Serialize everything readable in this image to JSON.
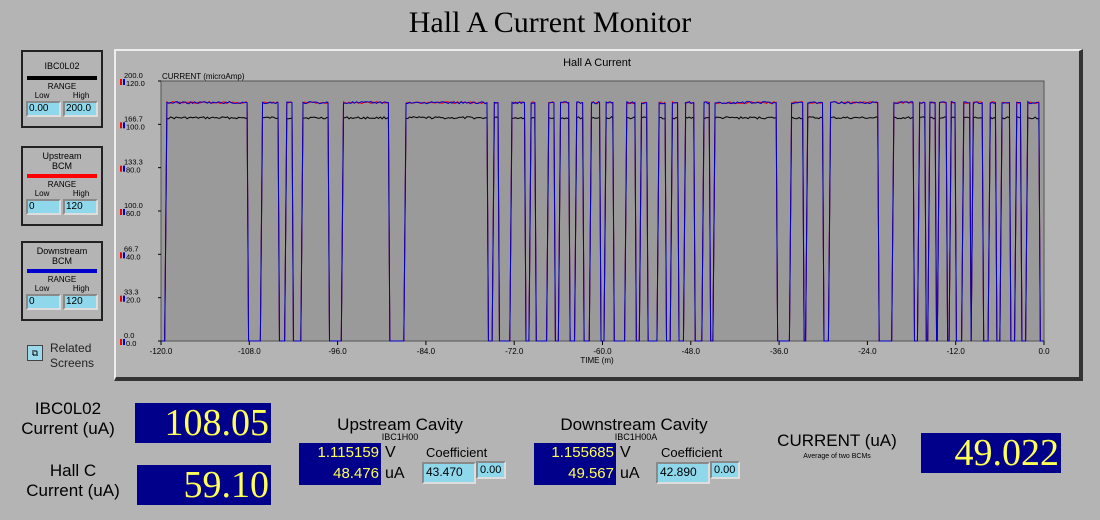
{
  "title": "Hall A Current Monitor",
  "range_boxes": [
    {
      "name": "IBC0L02",
      "color": "#000000",
      "range_label": "RANGE",
      "low_label": "Low",
      "high_label": "High",
      "low": "0.00",
      "high": "200.0"
    },
    {
      "name": "Upstream\nBCM",
      "color": "#ff0000",
      "range_label": "RANGE",
      "low_label": "Low",
      "high_label": "High",
      "low": "0",
      "high": "120"
    },
    {
      "name": "Downstream\nBCM",
      "color": "#0000cc",
      "range_label": "RANGE",
      "low_label": "Low",
      "high_label": "High",
      "low": "0",
      "high": "120"
    }
  ],
  "related": {
    "label": "Related\nScreens",
    "icon": "related-screens-icon"
  },
  "chart_data": {
    "type": "line",
    "title": "Hall A Current",
    "ylabel": "CURRENT (microAmp)",
    "xlabel": "TIME (m)",
    "xlim": [
      -120,
      0
    ],
    "x_ticks": [
      "-120.0",
      "-108.0",
      "-96.0",
      "-84.0",
      "-72.0",
      "-60.0",
      "-48.0",
      "-36.0",
      "-24.0",
      "-12.0",
      "0.0"
    ],
    "y_ticks_black": [
      "200.0",
      "166.7",
      "133.3",
      "100.0",
      "66.7",
      "33.3",
      "0.0"
    ],
    "y_ticks_red": [
      "120.0",
      "100.0",
      "80.0",
      "60.0",
      "40.0",
      "20.0",
      "0.0"
    ],
    "series": [
      {
        "name": "IBC0L02",
        "color": "#000000",
        "on_level": 103
      },
      {
        "name": "Upstream BCM",
        "color": "#ff0000",
        "on_level": 110
      },
      {
        "name": "Downstream BCM",
        "color": "#0000cc",
        "on_level": 110
      }
    ],
    "on_intervals": [
      [
        -119.5,
        -108.3
      ],
      [
        -106.5,
        -104.1
      ],
      [
        -103.2,
        -102.2
      ],
      [
        -101.0,
        -97.3
      ],
      [
        -95.5,
        -89.1
      ],
      [
        -87.0,
        -75.7
      ],
      [
        -75.0,
        -74.2
      ],
      [
        -72.6,
        -70.6
      ],
      [
        -70.0,
        -69.2
      ],
      [
        -67.6,
        -66.6
      ],
      [
        -66.0,
        -64.6
      ],
      [
        -63.8,
        -62.7
      ],
      [
        -61.8,
        -60.4
      ],
      [
        -59.8,
        -58.6
      ],
      [
        -57.0,
        -55.6
      ],
      [
        -55.0,
        -54.0
      ],
      [
        -52.6,
        -51.5
      ],
      [
        -50.8,
        -49.8
      ],
      [
        -49.0,
        -47.6
      ],
      [
        -46.5,
        -45.5
      ],
      [
        -45.0,
        -36.4
      ],
      [
        -34.6,
        -32.8
      ],
      [
        -32.4,
        -30.1
      ],
      [
        -29.3,
        -22.6
      ],
      [
        -20.7,
        -17.8
      ],
      [
        -17.2,
        -16.2
      ],
      [
        -15.8,
        -14.8
      ],
      [
        -14.5,
        -13.3
      ],
      [
        -12.9,
        -12.1
      ],
      [
        -11.2,
        -10.1
      ],
      [
        -9.9,
        -8.4
      ],
      [
        -7.6,
        -6.6
      ],
      [
        -6.0,
        -4.7
      ],
      [
        -4.0,
        -3.2
      ],
      [
        -2.5,
        -0.7
      ]
    ]
  },
  "ibc": {
    "label": "IBC0L02\nCurrent (uA)",
    "value": "108.05"
  },
  "hallc": {
    "label": "Hall C\nCurrent (uA)",
    "value": "59.10"
  },
  "upstream": {
    "title": "Upstream Cavity",
    "pv": "IBC1H00",
    "volts": "1.115159",
    "volts_unit": "V",
    "ua": "48.476",
    "ua_unit": "uA",
    "coef_label": "Coefficient",
    "coef": "43.470",
    "offset": "0.00"
  },
  "downstream": {
    "title": "Downstream Cavity",
    "pv": "IBC1H00A",
    "volts": "1.155685",
    "volts_unit": "V",
    "ua": "49.567",
    "ua_unit": "uA",
    "coef_label": "Coefficient",
    "coef": "42.890",
    "offset": "0.00"
  },
  "current": {
    "label": "CURRENT (uA)",
    "sub": "Average of two BCMs",
    "value": "49.022"
  }
}
